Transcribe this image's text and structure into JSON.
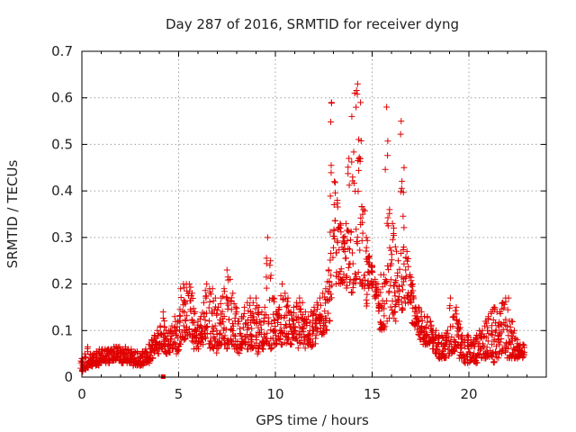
{
  "chart_data": {
    "type": "scatter",
    "title": "Day 287 of 2016, SRMTID for receiver dyng",
    "xlabel": "GPS time / hours",
    "ylabel": "SRMTID / TECUs",
    "xlim": [
      0,
      24
    ],
    "ylim": [
      0,
      0.7
    ],
    "xticks": [
      "0",
      "5",
      "10",
      "15",
      "20"
    ],
    "xtick_values": [
      0,
      5,
      10,
      15,
      20
    ],
    "yticks": [
      "0",
      "0.1",
      "0.2",
      "0.3",
      "0.4",
      "0.5",
      "0.6",
      "0.7"
    ],
    "ytick_values": [
      0,
      0.1,
      0.2,
      0.3,
      0.4,
      0.5,
      0.6,
      0.7
    ],
    "grid": true,
    "marker": "plus",
    "color": "#e00000",
    "series": [
      {
        "name": "SRMTID",
        "points_x": [
          0.0,
          0.15,
          0.3,
          0.45,
          0.6,
          0.75,
          0.9,
          1.05,
          1.2,
          1.35,
          1.5,
          1.65,
          1.8,
          1.95,
          2.1,
          2.25,
          2.4,
          2.55,
          2.7,
          2.85,
          3.0,
          3.15,
          3.3,
          3.45,
          3.6,
          3.75,
          3.9,
          4.05,
          4.2,
          4.35,
          4.5,
          4.65,
          4.8,
          4.95,
          5.1,
          5.25,
          5.4,
          5.55,
          5.7,
          5.85,
          6.0,
          6.15,
          6.3,
          6.45,
          6.6,
          6.75,
          6.9,
          7.05,
          7.2,
          7.35,
          7.5,
          7.65,
          7.8,
          7.95,
          8.1,
          8.25,
          8.4,
          8.55,
          8.7,
          8.85,
          9.0,
          9.15,
          9.3,
          9.45,
          9.6,
          9.75,
          9.9,
          10.05,
          10.2,
          10.35,
          10.5,
          10.65,
          10.8,
          10.95,
          11.1,
          11.25,
          11.4,
          11.55,
          11.7,
          11.85,
          12.0,
          12.15,
          12.3,
          12.45,
          12.6,
          12.75,
          12.9,
          13.05,
          13.2,
          13.35,
          13.5,
          13.65,
          13.8,
          13.95,
          14.1,
          14.25,
          14.4,
          14.55,
          14.7,
          14.85,
          15.0,
          15.15,
          15.3,
          15.45,
          15.6,
          15.75,
          15.9,
          16.05,
          16.2,
          16.35,
          16.5,
          16.65,
          16.8,
          16.95,
          17.1,
          17.25,
          17.4,
          17.55,
          17.7,
          17.85,
          18.0,
          18.15,
          18.3,
          18.45,
          18.6,
          18.75,
          18.9,
          19.05,
          19.2,
          19.35,
          19.5,
          19.65,
          19.8,
          19.95,
          20.1,
          20.25,
          20.4,
          20.55,
          20.7,
          20.85,
          21.0,
          21.15,
          21.3,
          21.45,
          21.6,
          21.75,
          21.9,
          22.05,
          22.2,
          22.35,
          22.5,
          22.65,
          22.8
        ],
        "points_low": [
          0.01,
          0.015,
          0.02,
          0.02,
          0.02,
          0.025,
          0.025,
          0.03,
          0.03,
          0.03,
          0.035,
          0.035,
          0.035,
          0.035,
          0.03,
          0.035,
          0.03,
          0.03,
          0.025,
          0.025,
          0.025,
          0.025,
          0.03,
          0.03,
          0.04,
          0.05,
          0.05,
          0.06,
          0.06,
          0.05,
          0.05,
          0.06,
          0.07,
          0.05,
          0.07,
          0.08,
          0.08,
          0.09,
          0.07,
          0.06,
          0.06,
          0.07,
          0.07,
          0.08,
          0.06,
          0.06,
          0.05,
          0.06,
          0.07,
          0.07,
          0.06,
          0.07,
          0.07,
          0.06,
          0.05,
          0.06,
          0.07,
          0.06,
          0.06,
          0.05,
          0.06,
          0.05,
          0.06,
          0.07,
          0.07,
          0.06,
          0.07,
          0.07,
          0.08,
          0.07,
          0.07,
          0.08,
          0.07,
          0.08,
          0.07,
          0.06,
          0.07,
          0.06,
          0.07,
          0.06,
          0.07,
          0.08,
          0.09,
          0.09,
          0.1,
          0.12,
          0.17,
          0.19,
          0.2,
          0.2,
          0.2,
          0.19,
          0.16,
          0.18,
          0.2,
          0.21,
          0.2,
          0.19,
          0.15,
          0.18,
          0.19,
          0.17,
          0.14,
          0.1,
          0.1,
          0.11,
          0.12,
          0.13,
          0.12,
          0.12,
          0.14,
          0.15,
          0.16,
          0.16,
          0.11,
          0.1,
          0.09,
          0.08,
          0.07,
          0.07,
          0.06,
          0.06,
          0.05,
          0.04,
          0.04,
          0.04,
          0.04,
          0.05,
          0.05,
          0.06,
          0.04,
          0.04,
          0.03,
          0.03,
          0.03,
          0.03,
          0.03,
          0.04,
          0.04,
          0.04,
          0.04,
          0.04,
          0.03,
          0.04,
          0.05,
          0.05,
          0.05,
          0.04,
          0.04,
          0.04,
          0.04,
          0.04,
          0.04
        ],
        "points_high": [
          0.04,
          0.05,
          0.065,
          0.05,
          0.05,
          0.055,
          0.06,
          0.06,
          0.06,
          0.06,
          0.06,
          0.065,
          0.065,
          0.065,
          0.06,
          0.065,
          0.06,
          0.06,
          0.055,
          0.055,
          0.05,
          0.055,
          0.06,
          0.07,
          0.08,
          0.09,
          0.1,
          0.11,
          0.14,
          0.1,
          0.1,
          0.11,
          0.13,
          0.12,
          0.19,
          0.2,
          0.2,
          0.2,
          0.18,
          0.14,
          0.12,
          0.13,
          0.16,
          0.2,
          0.19,
          0.19,
          0.17,
          0.15,
          0.17,
          0.19,
          0.23,
          0.21,
          0.18,
          0.15,
          0.12,
          0.13,
          0.15,
          0.16,
          0.17,
          0.16,
          0.17,
          0.15,
          0.14,
          0.15,
          0.3,
          0.25,
          0.17,
          0.14,
          0.15,
          0.2,
          0.18,
          0.17,
          0.14,
          0.15,
          0.16,
          0.17,
          0.16,
          0.14,
          0.13,
          0.14,
          0.15,
          0.16,
          0.17,
          0.18,
          0.19,
          0.23,
          0.59,
          0.42,
          0.38,
          0.33,
          0.3,
          0.33,
          0.47,
          0.56,
          0.61,
          0.63,
          0.59,
          0.36,
          0.3,
          0.26,
          0.24,
          0.21,
          0.2,
          0.22,
          0.22,
          0.58,
          0.36,
          0.33,
          0.28,
          0.25,
          0.55,
          0.45,
          0.27,
          0.22,
          0.2,
          0.15,
          0.15,
          0.14,
          0.13,
          0.13,
          0.12,
          0.1,
          0.1,
          0.09,
          0.09,
          0.09,
          0.1,
          0.17,
          0.13,
          0.15,
          0.12,
          0.09,
          0.08,
          0.09,
          0.08,
          0.08,
          0.09,
          0.1,
          0.1,
          0.12,
          0.13,
          0.14,
          0.15,
          0.14,
          0.14,
          0.16,
          0.17,
          0.17,
          0.12,
          0.1,
          0.08,
          0.07,
          0.07
        ],
        "outlier": {
          "x": 4.2,
          "y": 0.0
        }
      }
    ]
  }
}
